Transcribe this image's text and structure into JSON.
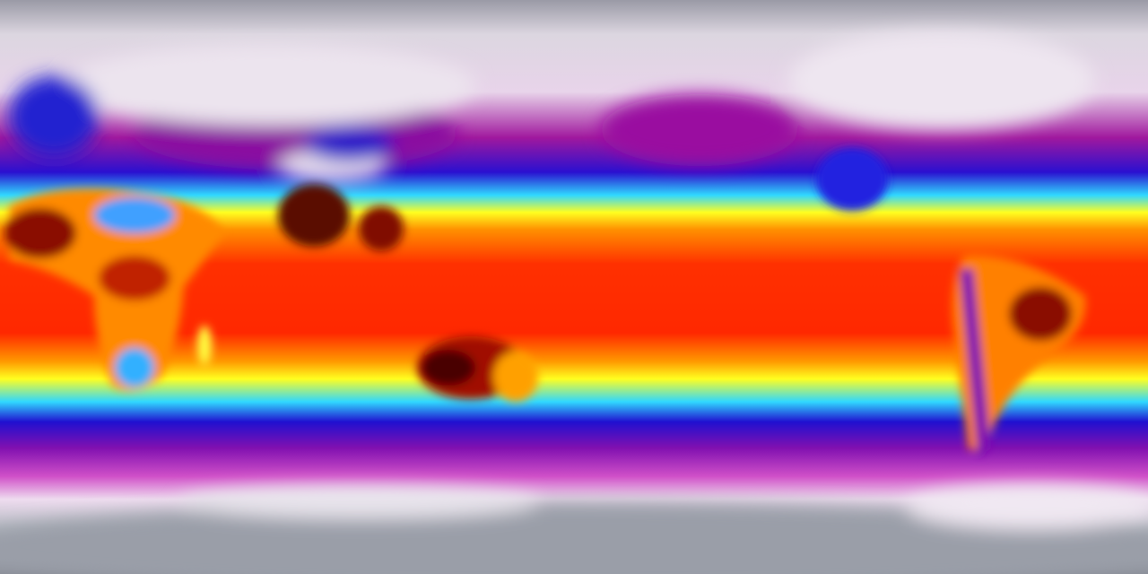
{
  "map": {
    "projection": "equirectangular",
    "colormap": [
      "#8a8d96",
      "#f2e8f2",
      "#a0109a",
      "#1a10d8",
      "#28d8ff",
      "#ffff10",
      "#ff2000",
      "#5a0000"
    ],
    "colors": {
      "polar": "#b9bcc4",
      "cold": "#a0109a",
      "cool": "#1a10d8",
      "mild": "#28d8ff",
      "warm": "#ffff10",
      "hot": "#ff3000",
      "hottest": "#6a0400"
    }
  }
}
